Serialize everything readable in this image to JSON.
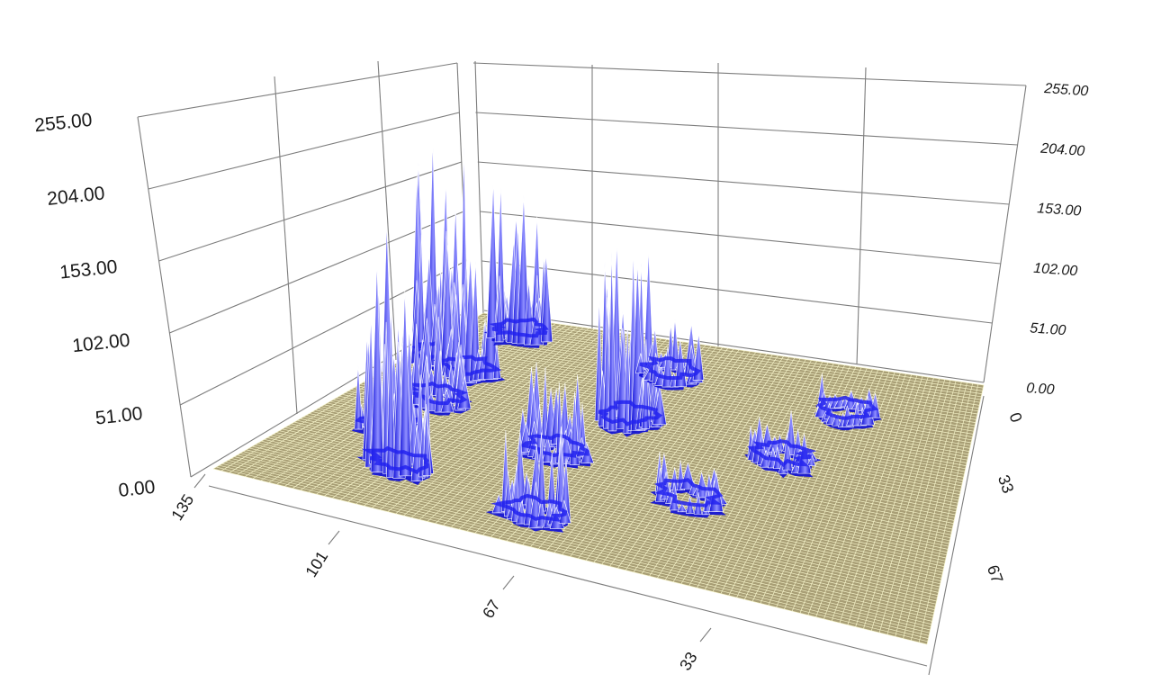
{
  "chart_data": {
    "type": "surface3d",
    "title": "",
    "xlabel": "",
    "ylabel": "",
    "zlabel": "",
    "z_ticks": [
      "0.00",
      "51.00",
      "102.00",
      "153.00",
      "204.00",
      "255.00"
    ],
    "x_ticks": [
      "135",
      "101",
      "67",
      "33"
    ],
    "y_ticks": [
      "0",
      "33",
      "67"
    ],
    "zlim": [
      0,
      255
    ],
    "xlim": [
      0,
      135
    ],
    "ylim": [
      0,
      100
    ],
    "grid": true,
    "colors": {
      "surface": "#0b0bd6",
      "surface_highlight": "#8f8fff",
      "floor": "#a89e75",
      "floor_grid": "#f4f2c8",
      "axis_grid": "#7d7d7d"
    },
    "clusters": [
      {
        "x": 108,
        "y": 20,
        "peak": 230
      },
      {
        "x": 88,
        "y": 13,
        "peak": 90
      },
      {
        "x": 63,
        "y": 13,
        "peak": 75
      },
      {
        "x": 42,
        "y": 12,
        "peak": 140
      },
      {
        "x": 36,
        "y": 5,
        "peak": 200
      },
      {
        "x": 12,
        "y": 12,
        "peak": 155
      },
      {
        "x": 118,
        "y": 42,
        "peak": 85
      },
      {
        "x": 80,
        "y": 37,
        "peak": 80
      },
      {
        "x": 53,
        "y": 43,
        "peak": 175
      },
      {
        "x": 22,
        "y": 43,
        "peak": 60
      },
      {
        "x": 90,
        "y": 60,
        "peak": 40
      },
      {
        "x": 58,
        "y": 70,
        "peak": 45
      },
      {
        "x": 28,
        "y": 77,
        "peak": 35
      }
    ]
  }
}
